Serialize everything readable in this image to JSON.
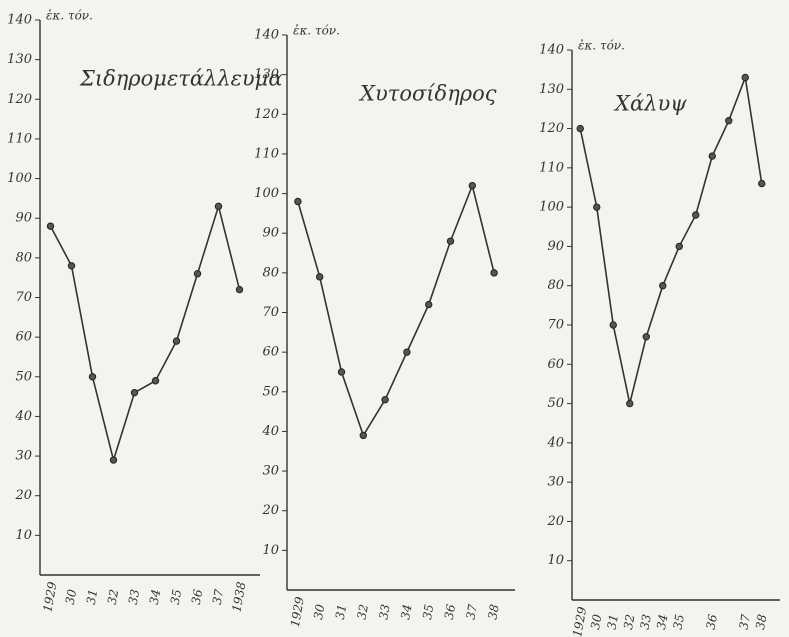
{
  "chart_data": [
    {
      "type": "line",
      "title": "Σιδηρομετάλλευμα",
      "y_label": "ἐκ. τόν.",
      "categories": [
        "1929",
        "30",
        "31",
        "32",
        "33",
        "34",
        "35",
        "36",
        "37",
        "1938"
      ],
      "values": [
        88,
        78,
        50,
        29,
        46,
        49,
        59,
        76,
        93,
        72
      ],
      "color": "#333333",
      "ylim": [
        0,
        140
      ],
      "yticks": [
        10,
        20,
        30,
        40,
        50,
        60,
        70,
        80,
        90,
        100,
        110,
        120,
        130,
        140
      ],
      "grid": false
    },
    {
      "type": "line",
      "title": "Χυτοσίδηρος",
      "y_label": "ἐκ. τόν.",
      "categories": [
        "1929",
        "30",
        "31",
        "32",
        "33",
        "34",
        "35",
        "36",
        "37",
        "38"
      ],
      "values": [
        98,
        79,
        55,
        39,
        48,
        60,
        72,
        88,
        102,
        80
      ],
      "color": "#333333",
      "ylim": [
        0,
        140
      ],
      "yticks": [
        10,
        20,
        30,
        40,
        50,
        60,
        70,
        80,
        90,
        100,
        110,
        120,
        130,
        140
      ],
      "grid": false
    },
    {
      "type": "line",
      "title": "Χάλυψ",
      "y_label": "ἐκ. τόν.",
      "categories": [
        "1929",
        "30",
        "31",
        "32",
        "33",
        "34",
        "35",
        null,
        "36",
        null,
        "37",
        "38"
      ],
      "values": [
        120,
        100,
        70,
        50,
        67,
        80,
        90,
        98,
        113,
        122,
        133,
        106
      ],
      "color": "#333333",
      "ylim": [
        0,
        140
      ],
      "yticks": [
        10,
        20,
        30,
        40,
        50,
        60,
        70,
        80,
        90,
        100,
        110,
        120,
        130,
        140
      ],
      "grid": false
    }
  ]
}
